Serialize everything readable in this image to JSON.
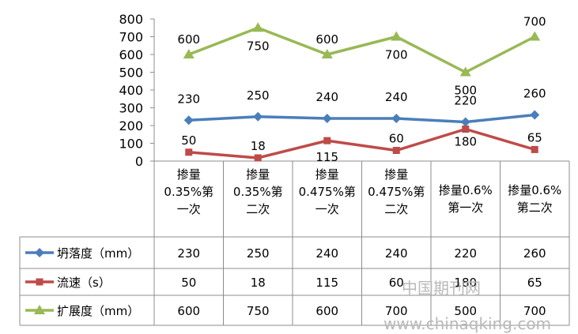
{
  "chart_data": {
    "type": "line",
    "categories": [
      [
        "掺量",
        "0.35%第",
        "一次"
      ],
      [
        "掺量",
        "0.35%第",
        "二次"
      ],
      [
        "掺量",
        "0.475%第",
        "一次"
      ],
      [
        "掺量",
        "0.475%第",
        "二次"
      ],
      [
        "掺量0.6%",
        "第一次"
      ],
      [
        "掺量0.6%",
        "第二次"
      ]
    ],
    "yticks": [
      "0",
      "100",
      "200",
      "300",
      "400",
      "500",
      "600",
      "700",
      "800"
    ],
    "ylim": [
      0,
      800
    ],
    "grid": false,
    "series": [
      {
        "name": "坍落度（mm）",
        "values": [
          230,
          250,
          240,
          240,
          220,
          260
        ],
        "labels": [
          "230",
          "250",
          "240",
          "240",
          "220",
          "260"
        ],
        "color": "#4a7ebb",
        "marker": "diamond"
      },
      {
        "name": "流速（s）",
        "values": [
          50,
          18,
          115,
          60,
          180,
          65
        ],
        "labels": [
          "50",
          "18",
          "115",
          "60",
          "180",
          "65"
        ],
        "color": "#be4b48",
        "marker": "square"
      },
      {
        "name": "扩展度（mm）",
        "values": [
          600,
          750,
          600,
          700,
          500,
          700
        ],
        "labels": [
          "600",
          "750",
          "600",
          "700",
          "500",
          "700"
        ],
        "color": "#98b954",
        "marker": "triangle"
      }
    ],
    "table": true
  },
  "watermark": {
    "line1": "中国期刊网",
    "line2": "www.chinaqking.com"
  }
}
